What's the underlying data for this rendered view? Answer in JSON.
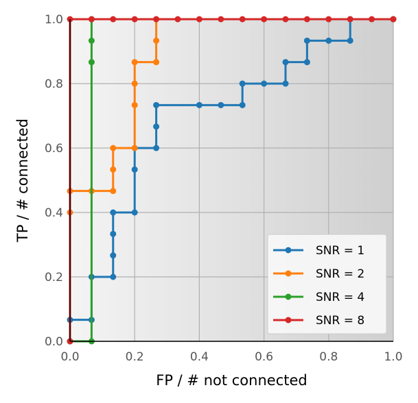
{
  "chart_data": {
    "type": "line",
    "xlabel": "FP / # not connected",
    "ylabel": "TP / # connected",
    "xlim": [
      0,
      1
    ],
    "ylim": [
      0,
      1
    ],
    "x_ticks": [
      "0.0",
      "0.2",
      "0.4",
      "0.6",
      "0.8",
      "1.0"
    ],
    "y_ticks": [
      "0.0",
      "0.2",
      "0.4",
      "0.6",
      "0.8",
      "1.0"
    ],
    "grid": true,
    "legend_position": "bottom-right",
    "series": [
      {
        "name": "SNR = 1",
        "color": "#1f77b4",
        "points": [
          [
            0,
            0
          ],
          [
            0,
            0.0667
          ],
          [
            0.0667,
            0.0667
          ],
          [
            0.0667,
            0.2
          ],
          [
            0.1333,
            0.2
          ],
          [
            0.1333,
            0.2667
          ],
          [
            0.1333,
            0.3333
          ],
          [
            0.1333,
            0.4
          ],
          [
            0.2,
            0.4
          ],
          [
            0.2,
            0.5333
          ],
          [
            0.2,
            0.6
          ],
          [
            0.2667,
            0.6
          ],
          [
            0.2667,
            0.6667
          ],
          [
            0.2667,
            0.7333
          ],
          [
            0.4,
            0.7333
          ],
          [
            0.4667,
            0.7333
          ],
          [
            0.5333,
            0.7333
          ],
          [
            0.5333,
            0.8
          ],
          [
            0.6,
            0.8
          ],
          [
            0.6667,
            0.8
          ],
          [
            0.6667,
            0.8667
          ],
          [
            0.7333,
            0.8667
          ],
          [
            0.7333,
            0.9333
          ],
          [
            0.8,
            0.9333
          ],
          [
            0.8667,
            0.9333
          ],
          [
            0.8667,
            1.0
          ],
          [
            1.0,
            1.0
          ]
        ]
      },
      {
        "name": "SNR = 2",
        "color": "#ff7f0e",
        "points": [
          [
            0,
            0
          ],
          [
            0,
            0.4
          ],
          [
            0,
            0.4667
          ],
          [
            0.0667,
            0.4667
          ],
          [
            0.1333,
            0.4667
          ],
          [
            0.1333,
            0.5333
          ],
          [
            0.1333,
            0.6
          ],
          [
            0.2,
            0.6
          ],
          [
            0.2,
            0.7333
          ],
          [
            0.2,
            0.8
          ],
          [
            0.2,
            0.8667
          ],
          [
            0.2667,
            0.8667
          ],
          [
            0.2667,
            0.9333
          ],
          [
            0.2667,
            1.0
          ],
          [
            1.0,
            1.0
          ]
        ]
      },
      {
        "name": "SNR = 4",
        "color": "#2ca02c",
        "points": [
          [
            0,
            0
          ],
          [
            0.0667,
            0
          ],
          [
            0.0667,
            0.8667
          ],
          [
            0.0667,
            0.9333
          ],
          [
            0.0667,
            1.0
          ],
          [
            1.0,
            1.0
          ]
        ]
      },
      {
        "name": "SNR = 8",
        "color": "#d62728",
        "points": [
          [
            0,
            0
          ],
          [
            0,
            1.0
          ],
          [
            0.0667,
            1.0
          ],
          [
            0.1333,
            1.0
          ],
          [
            0.2,
            1.0
          ],
          [
            0.2667,
            1.0
          ],
          [
            0.3333,
            1.0
          ],
          [
            0.4,
            1.0
          ],
          [
            0.4667,
            1.0
          ],
          [
            0.5333,
            1.0
          ],
          [
            0.6,
            1.0
          ],
          [
            0.6667,
            1.0
          ],
          [
            0.7333,
            1.0
          ],
          [
            0.8,
            1.0
          ],
          [
            0.8667,
            1.0
          ],
          [
            0.9333,
            1.0
          ],
          [
            1.0,
            1.0
          ]
        ]
      }
    ]
  }
}
